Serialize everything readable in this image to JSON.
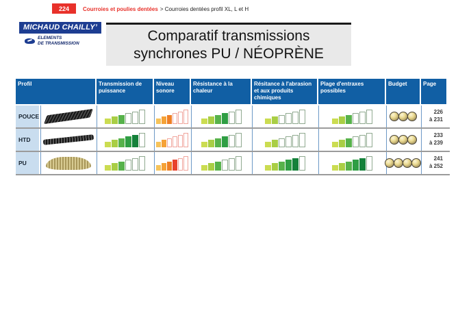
{
  "header": {
    "page_number": "224",
    "breadcrumb_bold": "Courroies et poulies dentées",
    "breadcrumb_rest": "> Courroies dentées profil XL, L et H"
  },
  "logo": {
    "brand": "MICHAUD CHAILLY’",
    "tagline1": "ELEMENTS",
    "tagline2": "DE TRANSMISSION"
  },
  "title": {
    "line1": "Comparatif transmissions",
    "line2": "synchrones PU / NÉOPRÈNE"
  },
  "table": {
    "max_rating": 6,
    "columns": [
      {
        "key": "profil",
        "label": "Profil"
      },
      {
        "key": "transmission",
        "label": "Transmission de puissance",
        "scale": "green"
      },
      {
        "key": "sonore",
        "label": "Niveau sonore",
        "scale": "orange"
      },
      {
        "key": "chaleur",
        "label": "Résistance à la chaleur",
        "scale": "green"
      },
      {
        "key": "abrasion",
        "label": "Résitance à l'abrasion et aux produits chimiques",
        "scale": "green"
      },
      {
        "key": "entraxes",
        "label": "Plage d'entraxes possibles",
        "scale": "green"
      },
      {
        "key": "budget",
        "label": "Budget"
      },
      {
        "key": "page",
        "label": "Page"
      }
    ],
    "rows": [
      {
        "profil": "POUCE",
        "belt": "pouce-black-toothed-belt",
        "transmission": 3,
        "sonore": 3,
        "chaleur": 4,
        "abrasion": 2,
        "entraxes": 3,
        "budget_coins": 3,
        "page_line1": "226",
        "page_line2": "à 231"
      },
      {
        "profil": "HTD",
        "belt": "htd-black-toothed-belt",
        "transmission": 5,
        "sonore": 2,
        "chaleur": 4,
        "abrasion": 2,
        "entraxes": 3,
        "budget_coins": 3,
        "page_line1": "233",
        "page_line2": "à 239"
      },
      {
        "profil": "PU",
        "belt": "pu-tan-ribbed-belt",
        "transmission": 3,
        "sonore": 4,
        "chaleur": 3,
        "abrasion": 5,
        "entraxes": 5,
        "budget_coins": 4,
        "page_line1": "241",
        "page_line2": "à 252"
      }
    ]
  },
  "colors": {
    "accent_red": "#e8312a",
    "header_blue": "#115fa4",
    "row_label_blue": "#c9ddef",
    "logo_blue": "#1d3d91",
    "green_ramp": [
      "#cbdc51",
      "#a9ce45",
      "#57b24b",
      "#2f9e44",
      "#15813a",
      "#0b6b31"
    ],
    "orange_ramp": [
      "#f6c35a",
      "#f5a237",
      "#ee7f25",
      "#e8422d",
      "#dd2a21",
      "#c01f1d"
    ],
    "green_empty_outline": "#8fa98f",
    "orange_empty_outline": "#f0a49b"
  }
}
